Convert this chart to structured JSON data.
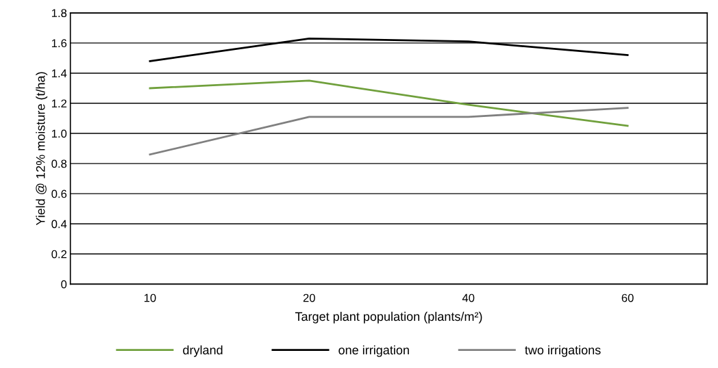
{
  "chart_data": {
    "type": "line",
    "xlabel": "Target plant population (plants/m²)",
    "ylabel": "Yield @ 12% moisture (t/ha)",
    "categories": [
      "10",
      "20",
      "40",
      "60"
    ],
    "series": [
      {
        "name": "dryland",
        "color": "#70a03c",
        "values": [
          1.3,
          1.35,
          1.19,
          1.05
        ]
      },
      {
        "name": "one irrigation",
        "color": "#000000",
        "values": [
          1.48,
          1.63,
          1.61,
          1.52
        ]
      },
      {
        "name": "two irrigations",
        "color": "#808080",
        "values": [
          0.86,
          1.11,
          1.11,
          1.17
        ]
      }
    ],
    "ylim": [
      0,
      1.8
    ],
    "yticks": [
      {
        "value": 0,
        "label": "0"
      },
      {
        "value": 0.2,
        "label": "0.2"
      },
      {
        "value": 0.4,
        "label": "0.4"
      },
      {
        "value": 0.6,
        "label": "0.6"
      },
      {
        "value": 0.8,
        "label": "0.8"
      },
      {
        "value": 1.0,
        "label": "1.0"
      },
      {
        "value": 1.2,
        "label": "1.2"
      },
      {
        "value": 1.4,
        "label": "1.4"
      },
      {
        "value": 1.6,
        "label": "1.6"
      },
      {
        "value": 1.8,
        "label": "1.8"
      }
    ],
    "grid": "y",
    "legend": "bottom",
    "marker": "none",
    "line_style": "solid"
  }
}
